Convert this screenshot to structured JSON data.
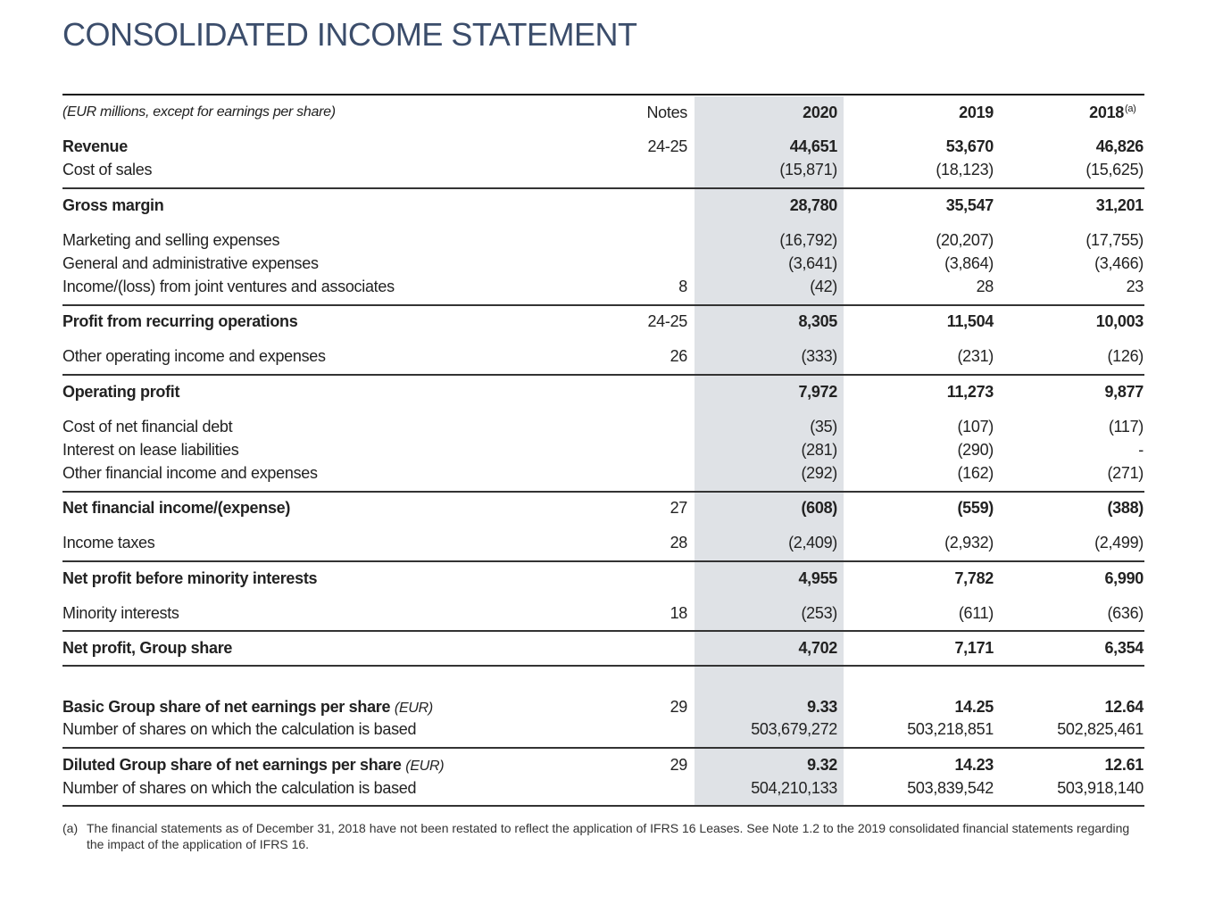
{
  "header": {
    "title": "CONSOLIDATED INCOME STATEMENT"
  },
  "table": {
    "columns": [
      "(EUR millions, except for earnings per share)",
      "Notes",
      "2020",
      "2019",
      "2018"
    ],
    "column_note": "(a)",
    "rows": [
      {
        "label": "Revenue",
        "notes": "24-25",
        "values": [
          "44,651",
          "53,670",
          "46,826"
        ]
      },
      {
        "label": "Cost of sales",
        "notes": null,
        "values": [
          "(15,871)",
          "(18,123)",
          "(15,625)"
        ]
      },
      {
        "label": "Gross margin",
        "notes": null,
        "values": [
          "28,780",
          "35,547",
          "31,201"
        ]
      },
      {
        "label": "Marketing and selling expenses",
        "notes": null,
        "values": [
          "(16,792)",
          "(20,207)",
          "(17,755)"
        ]
      },
      {
        "label": "General and administrative expenses",
        "notes": null,
        "values": [
          "(3,641)",
          "(3,864)",
          "(3,466)"
        ]
      },
      {
        "label": "Income/(loss) from joint ventures and associates",
        "notes": "8",
        "values": [
          "(42)",
          "28",
          "23"
        ]
      },
      {
        "label": "Profit from recurring operations",
        "notes": "24-25",
        "values": [
          "8,305",
          "11,504",
          "10,003"
        ]
      },
      {
        "label": "Other operating income and expenses",
        "notes": "26",
        "values": [
          "(333)",
          "(231)",
          "(126)"
        ]
      },
      {
        "label": "Operating profit",
        "notes": null,
        "values": [
          "7,972",
          "11,273",
          "9,877"
        ]
      },
      {
        "label": "Cost of net financial debt",
        "notes": null,
        "values": [
          "(35)",
          "(107)",
          "(117)"
        ]
      },
      {
        "label": "Interest on lease liabilities",
        "notes": null,
        "values": [
          "(281)",
          "(290)",
          "-"
        ]
      },
      {
        "label": "Other financial income and expenses",
        "notes": null,
        "values": [
          "(292)",
          "(162)",
          "(271)"
        ]
      },
      {
        "label": "Net financial income/(expense)",
        "notes": "27",
        "values": [
          "(608)",
          "(559)",
          "(388)"
        ]
      },
      {
        "label": "Income taxes",
        "notes": "28",
        "values": [
          "(2,409)",
          "(2,932)",
          "(2,499)"
        ]
      },
      {
        "label": "Net profit before minority interests",
        "notes": null,
        "values": [
          "4,955",
          "7,782",
          "6,990"
        ]
      },
      {
        "label": "Minority interests",
        "notes": "18",
        "values": [
          "(253)",
          "(611)",
          "(636)"
        ]
      },
      {
        "label": "Net profit, Group share",
        "notes": null,
        "values": [
          "4,702",
          "7,171",
          "6,354"
        ]
      },
      {
        "label": "Basic Group share of net earnings per share",
        "unit": "(EUR)",
        "notes": "29",
        "values": [
          "9.33",
          "14.25",
          "12.64"
        ]
      },
      {
        "label": "Number of shares on which the calculation is based",
        "notes": null,
        "values": [
          "503,679,272",
          "503,218,851",
          "502,825,461"
        ]
      },
      {
        "label": "Diluted Group share of net earnings per share",
        "unit": "(EUR)",
        "notes": "29",
        "values": [
          "9.32",
          "14.23",
          "12.61"
        ]
      },
      {
        "label": "Number of shares on which the calculation is based",
        "notes": null,
        "values": [
          "504,210,133",
          "503,839,542",
          "503,918,140"
        ]
      }
    ]
  },
  "footnote": {
    "marker": "(a)",
    "text": "The financial statements as of December 31, 2018 have not been restated to reflect the application of IFRS 16 Leases. See Note 1.2 to the 2019 consolidated financial statements regarding the impact of the application of IFRS 16."
  }
}
